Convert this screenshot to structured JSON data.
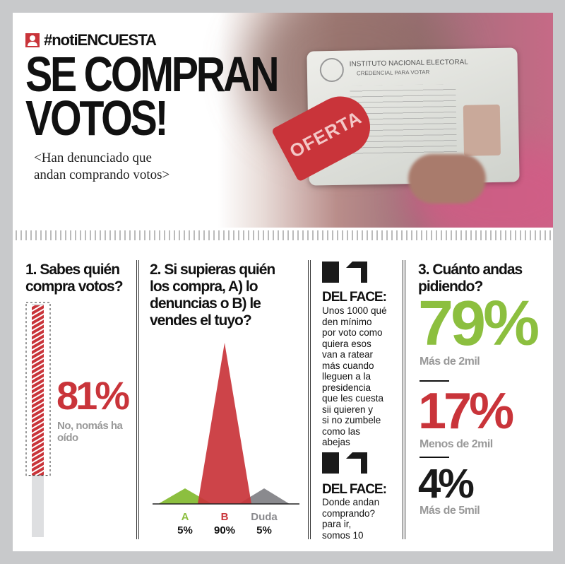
{
  "header": {
    "brand": "#notiENCUESTA",
    "title_line1": "SE COMPRAN",
    "title_line2": "VOTOS!",
    "subtitle_line1": "<Han denunciado que",
    "subtitle_line2": "andan comprando votos>",
    "photo": {
      "card_title": "INSTITUTO NACIONAL ELECTORAL",
      "card_subtitle": "CREDENCIAL PARA VOTAR",
      "tag": "OFERTA"
    }
  },
  "q1": {
    "question": "1. Sabes quién compra votos?",
    "percent": "81%",
    "label_line1": "No, nomás ha",
    "label_line2": "oído",
    "fill": 81
  },
  "q2": {
    "question_lines": [
      "2. Si supieras quién",
      "los compra, A) lo",
      "denuncias o B) le",
      "vendes el tuyo?"
    ]
  },
  "face": [
    {
      "head": "DEL FACE:",
      "lines": [
        "Unos 1000 qué",
        "den mínimo",
        "por voto como",
        "quiera esos",
        "van a ratear",
        "más cuando",
        "lleguen a la",
        "presidencia",
        "que les cuesta",
        "sii quieren y",
        "si no zumbele",
        "como las",
        "abejas"
      ]
    },
    {
      "head": "DEL FACE:",
      "lines": [
        "Donde andan",
        "comprando?",
        "para ir,",
        "somos 10"
      ]
    }
  ],
  "q3": {
    "question_line1": "3. Cuánto andas",
    "question_line2": "pidiendo?",
    "items": [
      {
        "percent": "79%",
        "label": "Más de 2mil",
        "color": "#8cbf3f"
      },
      {
        "percent": "17%",
        "label": "Menos de 2mil",
        "color": "#c9343a"
      },
      {
        "percent": "4%",
        "label": "Más de 5mil",
        "color": "#1a1a1a"
      }
    ]
  },
  "colors": {
    "red": "#c9343a",
    "green": "#8cbf3f",
    "gray": "#8a8a8e",
    "frame": "#c8c9cb"
  },
  "chart_data": [
    {
      "type": "bar",
      "title": "1. Sabes quién compra votos?",
      "categories": [
        "No, nomás ha oído"
      ],
      "values": [
        81
      ],
      "ylim": [
        0,
        100
      ]
    },
    {
      "type": "area",
      "title": "2. Si supieras quién los compra, A) lo denuncias o B) le vendes el tuyo?",
      "categories": [
        "A",
        "B",
        "Duda"
      ],
      "values": [
        5,
        90,
        5
      ],
      "labels": [
        "5%",
        "90%",
        "5%"
      ],
      "colors": [
        "#8cbf3f",
        "#c9343a",
        "#8a8a8e"
      ],
      "ylim": [
        0,
        90
      ]
    },
    {
      "type": "table",
      "title": "3. Cuánto andas pidiendo?",
      "categories": [
        "Más de 2mil",
        "Menos de 2mil",
        "Más de 5mil"
      ],
      "values": [
        79,
        17,
        4
      ]
    }
  ]
}
